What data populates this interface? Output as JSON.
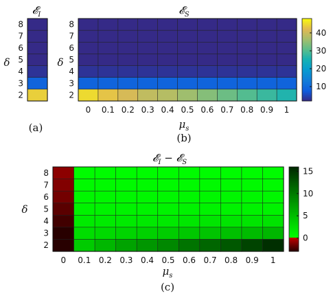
{
  "chart_data": [
    {
      "panel": "(a)",
      "type": "heatmap",
      "title": "𝓔_I",
      "ylabel": "δ",
      "y": [
        "8",
        "7",
        "6",
        "5",
        "4",
        "3",
        "2"
      ],
      "values": [
        [
          2
        ],
        [
          2
        ],
        [
          2
        ],
        [
          2
        ],
        [
          3
        ],
        [
          9
        ],
        [
          44
        ]
      ],
      "colormap": "parula",
      "clim": [
        2,
        48
      ]
    },
    {
      "panel": "(b)",
      "type": "heatmap",
      "title": "𝓔_S",
      "xlabel": "μ_s",
      "ylabel": "δ",
      "x": [
        "0",
        "0.1",
        "0.2",
        "0.3",
        "0.4",
        "0.5",
        "0.6",
        "0.7",
        "0.8",
        "0.9",
        "1"
      ],
      "y": [
        "8",
        "7",
        "6",
        "5",
        "4",
        "3",
        "2"
      ],
      "values": [
        [
          2,
          2,
          2,
          2,
          2,
          2,
          2,
          2,
          2,
          2,
          2
        ],
        [
          2,
          2,
          2,
          2,
          2,
          2,
          2,
          2,
          2,
          2,
          2
        ],
        [
          2,
          2,
          2,
          2,
          2,
          2,
          2,
          2,
          2,
          2,
          2
        ],
        [
          2,
          2,
          2,
          2,
          2,
          2,
          2,
          2,
          2,
          2,
          2
        ],
        [
          3,
          3,
          3,
          3,
          3,
          3,
          3,
          3,
          3,
          3,
          3
        ],
        [
          9,
          9,
          9,
          9,
          9,
          9,
          9,
          9,
          9,
          9,
          9
        ],
        [
          45,
          43,
          41,
          39,
          38,
          36,
          34,
          32,
          30,
          28,
          26
        ]
      ],
      "colormap": "parula",
      "clim": [
        2,
        48
      ],
      "colorbar_ticks": [
        10,
        20,
        30,
        40
      ]
    },
    {
      "panel": "(c)",
      "type": "heatmap",
      "title": "𝓔_I − 𝓔_S",
      "xlabel": "μ_s",
      "ylabel": "δ",
      "x": [
        "0",
        "0.1",
        "0.2",
        "0.3",
        "0.4",
        "0.5",
        "0.6",
        "0.7",
        "0.8",
        "0.9",
        "1"
      ],
      "y": [
        "8",
        "7",
        "6",
        "5",
        "4",
        "3",
        "2"
      ],
      "values": [
        [
          -1.0,
          0.2,
          0.2,
          0.2,
          0.2,
          0.2,
          0.2,
          0.2,
          0.2,
          0.2,
          0.2
        ],
        [
          -1.2,
          0.4,
          0.4,
          0.4,
          0.4,
          0.4,
          0.4,
          0.4,
          0.4,
          0.4,
          0.4
        ],
        [
          -1.5,
          0.6,
          0.6,
          0.6,
          0.6,
          0.6,
          0.6,
          0.6,
          0.6,
          0.6,
          0.6
        ],
        [
          -2.0,
          0.9,
          0.9,
          0.9,
          0.9,
          0.9,
          0.9,
          0.9,
          0.9,
          0.9,
          0.9
        ],
        [
          -2.5,
          1.5,
          1.5,
          1.6,
          1.7,
          1.7,
          1.8,
          1.9,
          2.0,
          2.0,
          2.1
        ],
        [
          -3.0,
          2.5,
          2.8,
          3.2,
          3.5,
          3.8,
          4.2,
          4.5,
          4.8,
          5.2,
          5.5
        ],
        [
          -3.0,
          4.0,
          5.5,
          7.0,
          8.0,
          9.0,
          10.5,
          11.5,
          12.5,
          14.0,
          15.5
        ]
      ],
      "colormap": "red-black-green",
      "clim": [
        -3,
        16
      ],
      "colorbar_ticks": [
        0,
        5,
        10,
        15
      ]
    }
  ],
  "captions": {
    "a": "(a)",
    "b": "(b)",
    "c": "(c)"
  }
}
